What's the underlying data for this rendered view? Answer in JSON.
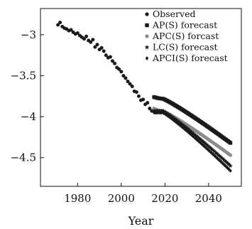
{
  "chart_data": {
    "type": "scatter",
    "xlabel": "Year",
    "ylabel": "",
    "xlim": [
      1963,
      2055
    ],
    "ylim": [
      -4.85,
      -2.68
    ],
    "xticks": [
      1980,
      2000,
      2020,
      2040
    ],
    "yticks": [
      -3,
      -3.5,
      -4,
      -4.5
    ],
    "ytick_labels": [
      "−3",
      "−3.5",
      "−4",
      "−4.5"
    ],
    "legend_position": "top-right",
    "series": [
      {
        "name": "Observed",
        "marker": "circle",
        "color": "#1a1a1a",
        "x": [
          1971,
          1972,
          1973,
          1974,
          1975,
          1976,
          1977,
          1978,
          1979,
          1980,
          1981,
          1982,
          1983,
          1984,
          1985,
          1986,
          1987,
          1988,
          1989,
          1990,
          1991,
          1992,
          1993,
          1994,
          1995,
          1996,
          1997,
          1998,
          1999,
          2000,
          2001,
          2002,
          2003,
          2004,
          2005,
          2006,
          2007,
          2008,
          2009,
          2010,
          2011,
          2012,
          2013,
          2014,
          2015,
          2016
        ],
        "y": [
          -2.88,
          -2.85,
          -2.9,
          -2.92,
          -2.93,
          -2.95,
          -2.94,
          -2.97,
          -2.99,
          -2.98,
          -3.01,
          -3.03,
          -3.05,
          -3.02,
          -3.07,
          -3.09,
          -3.06,
          -3.15,
          -3.12,
          -3.18,
          -3.16,
          -3.2,
          -3.25,
          -3.28,
          -3.27,
          -3.32,
          -3.35,
          -3.4,
          -3.42,
          -3.45,
          -3.5,
          -3.53,
          -3.57,
          -3.6,
          -3.63,
          -3.69,
          -3.7,
          -3.75,
          -3.8,
          -3.79,
          -3.85,
          -3.83,
          -3.9,
          -3.93,
          -3.91,
          -3.95
        ]
      },
      {
        "name": "AP(S) forecast",
        "marker": "square",
        "color": "#1a1a1a",
        "start_year": 2015,
        "end_year": 2050,
        "y_start": -3.76,
        "y_peak": -3.78,
        "y_end": -4.32
      },
      {
        "name": "APC(S) forcast",
        "marker": "circle",
        "color": "#8c8c8c",
        "start_year": 2015,
        "end_year": 2050,
        "y_start": -3.9,
        "y_peak": -3.93,
        "y_end": -4.47
      },
      {
        "name": "LC(S) forecast",
        "marker": "star",
        "color": "#1a1a1a",
        "start_year": 2015,
        "end_year": 2050,
        "y_start": -3.93,
        "y_peak": -3.93,
        "y_end": -4.6
      },
      {
        "name": "APCI(S) forecast",
        "marker": "diamond",
        "color": "#1a1a1a",
        "start_year": 2015,
        "end_year": 2050,
        "y_start": -3.95,
        "y_peak": -3.95,
        "y_end": -4.66
      }
    ]
  }
}
